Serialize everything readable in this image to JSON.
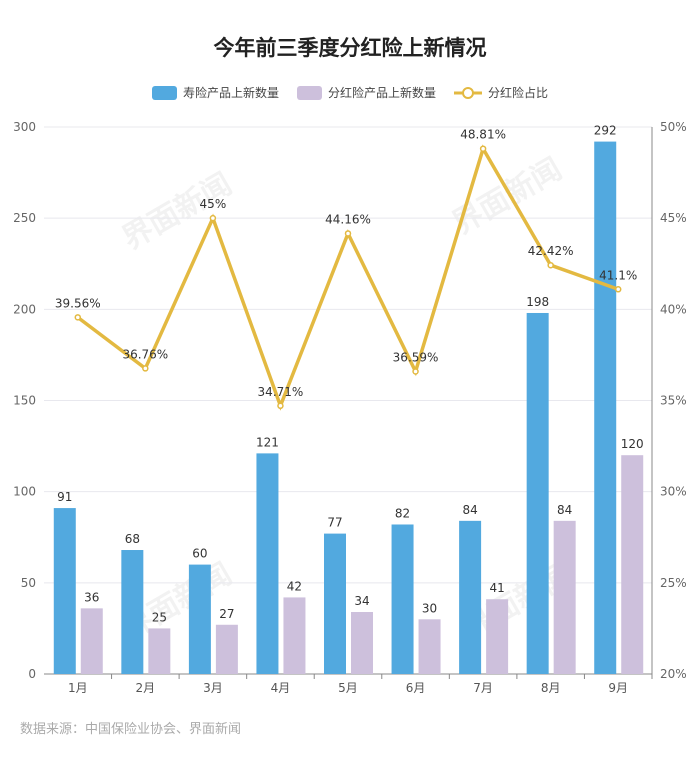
{
  "chart_data": {
    "type": "bar",
    "title": "今年前三季度分红险上新情况",
    "categories": [
      "1月",
      "2月",
      "3月",
      "4月",
      "5月",
      "6月",
      "7月",
      "8月",
      "9月"
    ],
    "series": [
      {
        "name": "寿险产品上新数量",
        "type": "bar",
        "axis": "left",
        "color": "#52a9df",
        "values": [
          91,
          68,
          60,
          121,
          77,
          82,
          84,
          198,
          292
        ]
      },
      {
        "name": "分红险产品上新数量",
        "type": "bar",
        "axis": "left",
        "color": "#cdc0dc",
        "values": [
          36,
          25,
          27,
          42,
          34,
          30,
          41,
          84,
          120
        ]
      },
      {
        "name": "分红险占比",
        "type": "line",
        "axis": "right",
        "color": "#e3b941",
        "values": [
          39.56,
          36.76,
          45,
          34.71,
          44.16,
          36.59,
          48.81,
          42.42,
          41.1
        ],
        "labels": [
          "39.56%",
          "36.76%",
          "45%",
          "34.71%",
          "44.16%",
          "36.59%",
          "48.81%",
          "42.42%",
          "41.1%"
        ]
      }
    ],
    "ylim": [
      0,
      300
    ],
    "yticks": [
      "0",
      "50",
      "100",
      "150",
      "200",
      "250",
      "300"
    ],
    "y2lim": [
      20,
      50
    ],
    "y2ticks": [
      "20%",
      "25%",
      "30%",
      "35%",
      "40%",
      "45%",
      "50%"
    ],
    "grid": true,
    "legend": "top-center"
  },
  "source": "数据来源：中国保险业协会、界面新闻",
  "watermark": "界面新闻"
}
